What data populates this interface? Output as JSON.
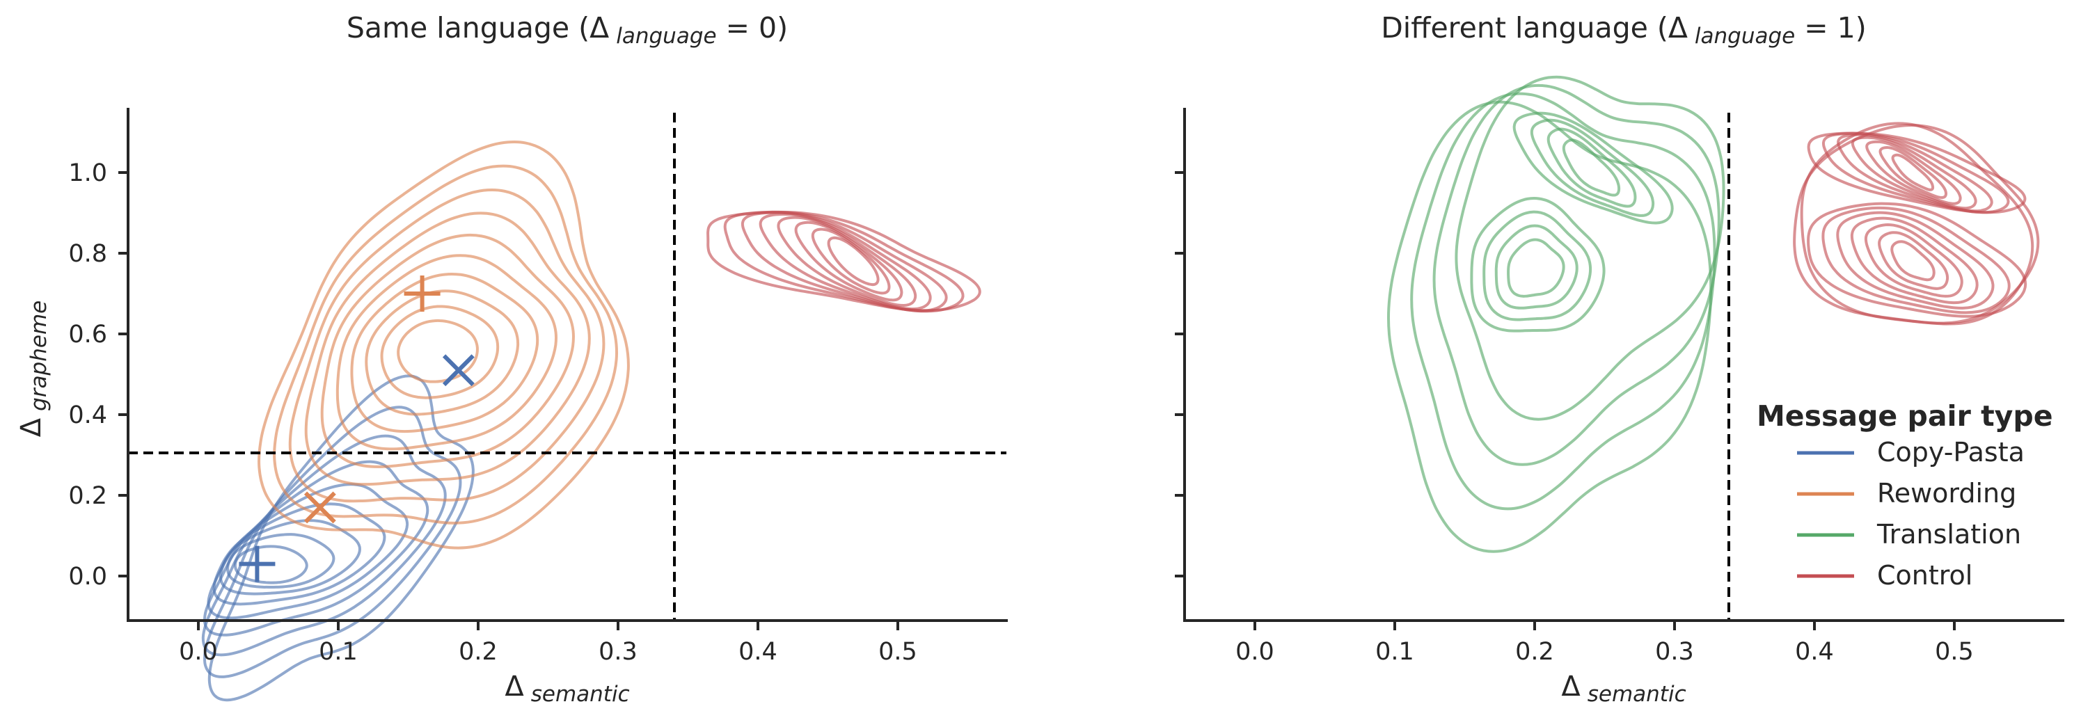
{
  "chart_data": [
    {
      "type": "kde-contour",
      "title": {
        "prefix": "Same language (",
        "delta": "Δ",
        "sub": "language",
        "suffix": " = 0)"
      },
      "xlabel": {
        "delta": "Δ",
        "sub": "semantic"
      },
      "ylabel": {
        "delta": "Δ",
        "sub": "grapheme"
      },
      "xlim": [
        -0.05,
        0.58
      ],
      "ylim": [
        -0.11,
        1.16
      ],
      "xticks": [
        "0.0",
        "0.1",
        "0.2",
        "0.3",
        "0.4",
        "0.5"
      ],
      "yticks": [
        "0.0",
        "0.2",
        "0.4",
        "0.6",
        "0.8",
        "1.0"
      ],
      "thresholds": {
        "vertical_x": 0.34,
        "horizontal_y": 0.31
      },
      "series": [
        {
          "name": "Copy-Pasta",
          "color": "#4c72b0",
          "mode": [
            0.045,
            0.02
          ],
          "spread": [
            0.11,
            0.13
          ],
          "markers": [
            {
              "shape": "plus",
              "x": 0.042,
              "y": 0.03
            },
            {
              "shape": "x",
              "x": 0.186,
              "y": 0.51
            }
          ]
        },
        {
          "name": "Rewording",
          "color": "#dd8452",
          "mode": [
            0.17,
            0.74
          ],
          "spread": [
            0.14,
            0.6
          ],
          "markers": [
            {
              "shape": "plus",
              "x": 0.16,
              "y": 0.7
            },
            {
              "shape": "x",
              "x": 0.087,
              "y": 0.17
            }
          ]
        },
        {
          "name": "Control",
          "color": "#c44e52",
          "mode": [
            0.48,
            0.79
          ],
          "spread": [
            0.19,
            0.15
          ],
          "markers": []
        }
      ]
    },
    {
      "type": "kde-contour",
      "title": {
        "prefix": "Different language (",
        "delta": "Δ",
        "sub": "language",
        "suffix": " = 1)"
      },
      "xlabel": {
        "delta": "Δ",
        "sub": "semantic"
      },
      "ylabel": {
        "delta": "",
        "sub": ""
      },
      "xlim": [
        -0.05,
        0.58
      ],
      "ylim": [
        -0.11,
        1.16
      ],
      "xticks": [
        "0.0",
        "0.1",
        "0.2",
        "0.3",
        "0.4",
        "0.5"
      ],
      "yticks": [],
      "thresholds": {
        "vertical_x": 0.34
      },
      "series": [
        {
          "name": "Translation",
          "color": "#55a868",
          "modes": [
            [
              0.24,
              1.01
            ],
            [
              0.2,
              0.76
            ]
          ],
          "spread": [
            0.25,
            0.75
          ],
          "markers": []
        },
        {
          "name": "Control",
          "color": "#c44e52",
          "modes": [
            [
              0.47,
              1.0
            ],
            [
              0.47,
              0.78
            ]
          ],
          "spread": [
            0.19,
            0.3
          ],
          "markers": []
        }
      ]
    }
  ],
  "legend": {
    "title": "Message pair type",
    "entries": [
      {
        "label": "Copy-Pasta",
        "color": "#4c72b0"
      },
      {
        "label": "Rewording",
        "color": "#dd8452"
      },
      {
        "label": "Translation",
        "color": "#55a868"
      },
      {
        "label": "Control",
        "color": "#c44e52"
      }
    ]
  }
}
